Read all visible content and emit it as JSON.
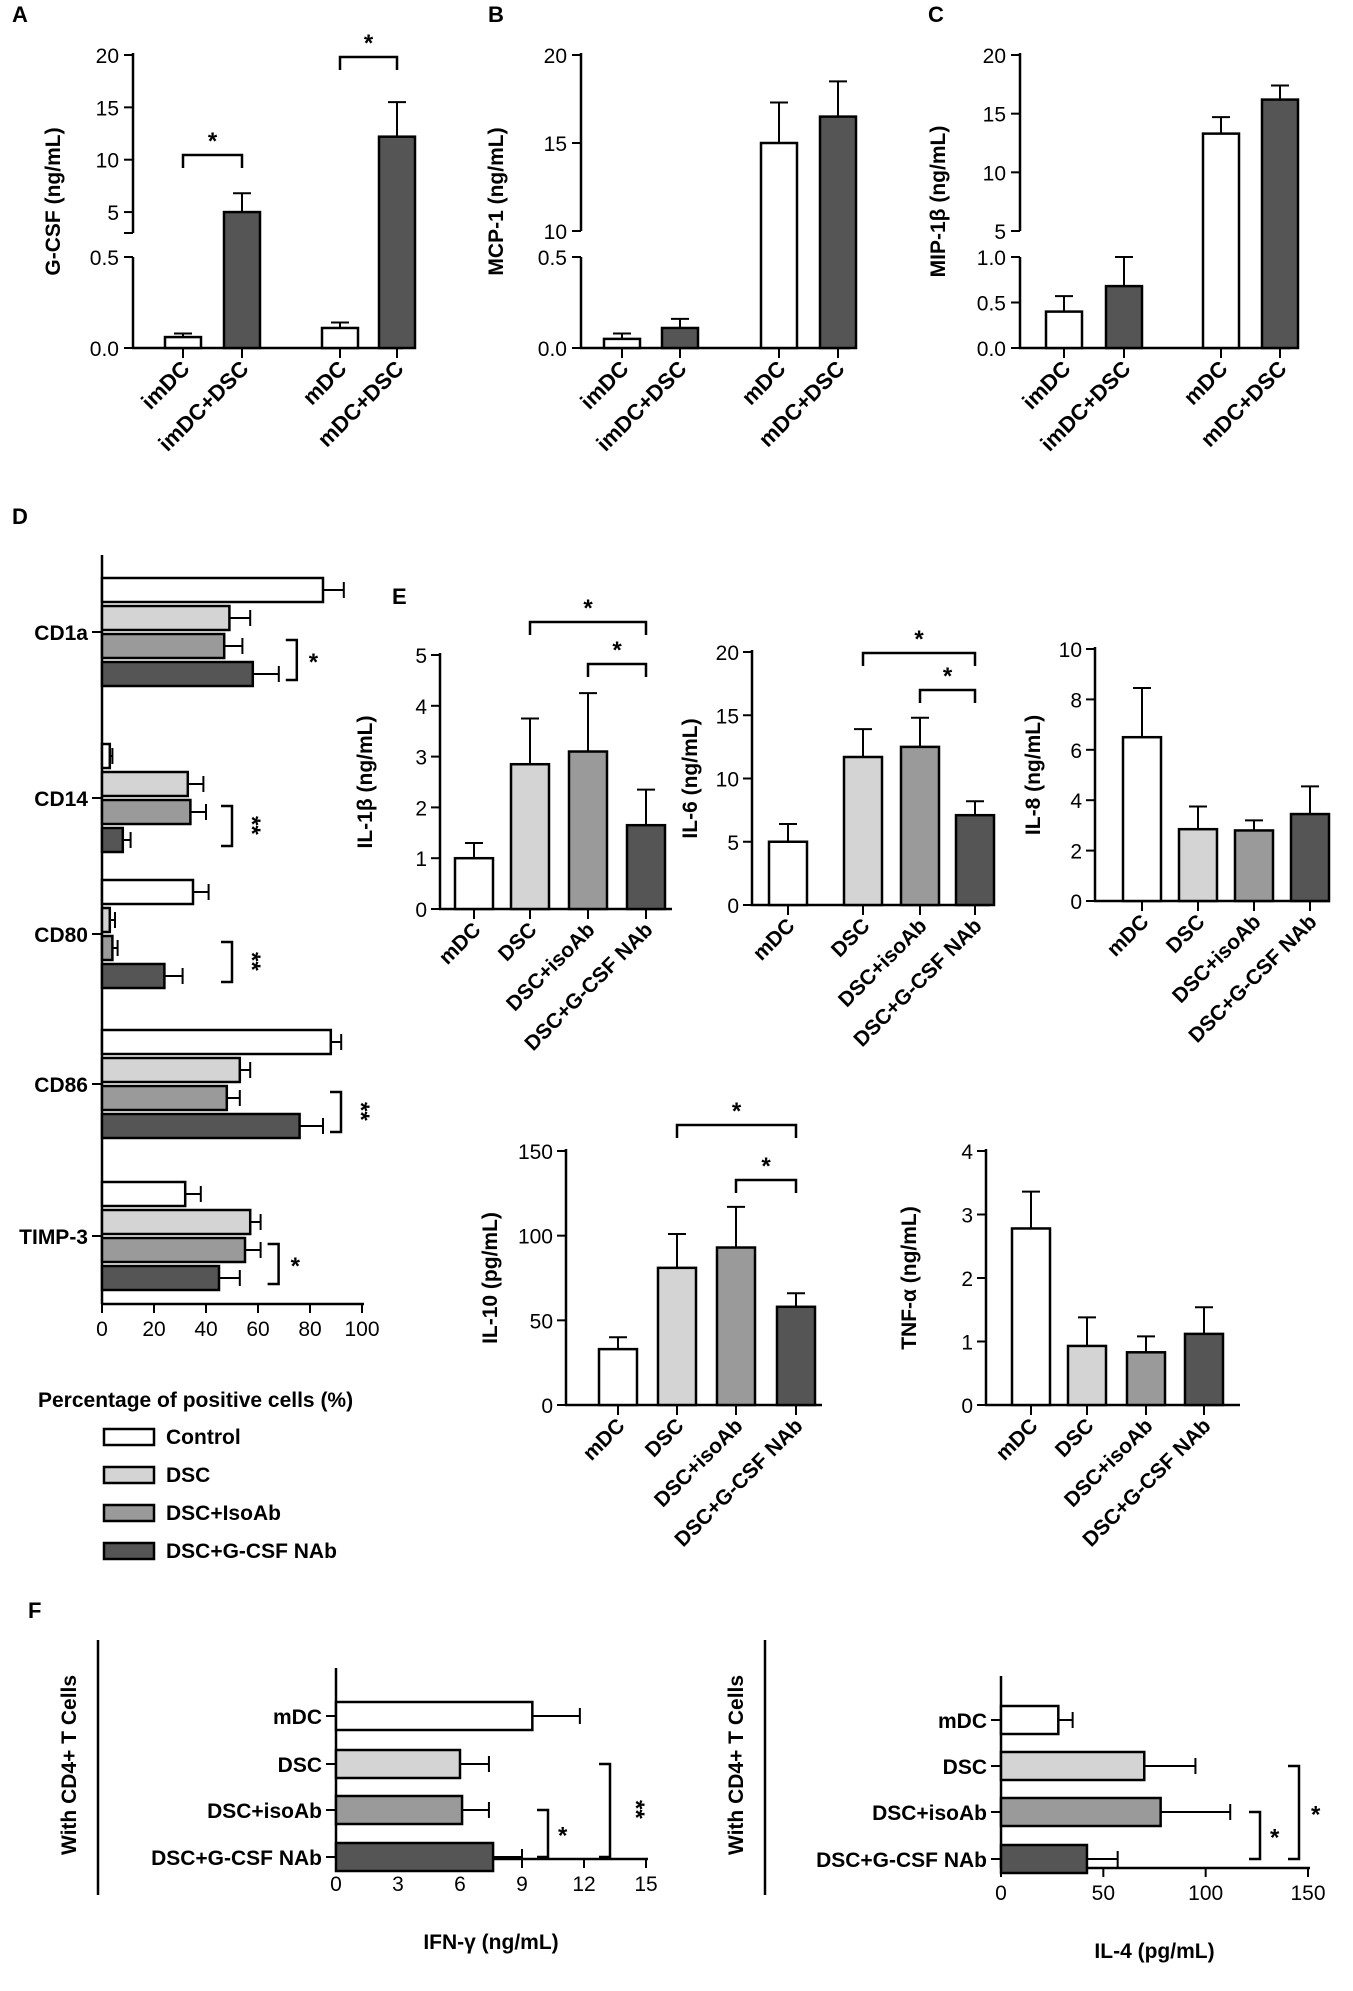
{
  "colors": {
    "white": "#ffffff",
    "light": "#d4d4d4",
    "mid": "#9a9a9a",
    "dark": "#555555",
    "black": "#000000"
  },
  "legend": {
    "title": "Percentage of positive cells (%)",
    "items": [
      {
        "label": "Control",
        "color": "#ffffff"
      },
      {
        "label": "DSC",
        "color": "#d4d4d4"
      },
      {
        "label": "DSC+IsoAb",
        "color": "#9a9a9a"
      },
      {
        "label": "DSC+G-CSF NAb",
        "color": "#555555"
      }
    ]
  },
  "chart_data": [
    {
      "panel": "A",
      "type": "bar",
      "ylabel": "G-CSF (ng/mL)",
      "categories": [
        "imDC",
        "imDC+DSC",
        "mDC",
        "mDC+DSC"
      ],
      "values": [
        0.06,
        5.0,
        0.11,
        12.2
      ],
      "errors": [
        0.02,
        1.8,
        0.03,
        3.3
      ],
      "colors": [
        "#ffffff",
        "#555555",
        "#ffffff",
        "#555555"
      ],
      "yticks_upper": [
        5,
        10,
        15,
        20
      ],
      "yticks_lower": [
        0.0,
        0.5
      ],
      "ylim_upper": [
        3,
        20
      ],
      "ylim_lower": [
        0,
        0.5
      ],
      "significance": [
        {
          "pair": [
            0,
            1
          ],
          "label": "*"
        },
        {
          "pair": [
            2,
            3
          ],
          "label": "*"
        }
      ]
    },
    {
      "panel": "B",
      "type": "bar",
      "ylabel": "MCP-1 (ng/mL)",
      "categories": [
        "imDC",
        "imDC+DSC",
        "mDC",
        "mDC+DSC"
      ],
      "values": [
        0.05,
        0.11,
        15.0,
        16.5
      ],
      "errors": [
        0.03,
        0.05,
        2.3,
        2.0
      ],
      "colors": [
        "#ffffff",
        "#555555",
        "#ffffff",
        "#555555"
      ],
      "yticks_upper": [
        10,
        15,
        20
      ],
      "yticks_lower": [
        0.0,
        0.5
      ],
      "ylim_upper": [
        10,
        20
      ],
      "ylim_lower": [
        0,
        0.5
      ],
      "significance": []
    },
    {
      "panel": "C",
      "type": "bar",
      "ylabel": "MIP-1β (ng/mL)",
      "categories": [
        "imDC",
        "imDC+DSC",
        "mDC",
        "mDC+DSC"
      ],
      "values": [
        0.4,
        0.68,
        13.3,
        16.2
      ],
      "errors": [
        0.17,
        0.32,
        1.4,
        1.2
      ],
      "colors": [
        "#ffffff",
        "#555555",
        "#ffffff",
        "#555555"
      ],
      "yticks_upper": [
        5,
        10,
        15,
        20
      ],
      "yticks_lower": [
        0.0,
        0.5,
        1.0
      ],
      "ylim_upper": [
        5,
        20
      ],
      "ylim_lower": [
        0,
        1.0
      ],
      "significance": []
    },
    {
      "panel": "D",
      "type": "bar",
      "orientation": "horizontal",
      "xlabel": "Percentage of positive cells (%)",
      "xlim": [
        0,
        100
      ],
      "xticks": [
        0,
        20,
        40,
        60,
        80,
        100
      ],
      "categories": [
        "CD1a",
        "CD14",
        "CD80",
        "CD86",
        "TIMP-3"
      ],
      "series": [
        {
          "name": "Control",
          "values": [
            85,
            3,
            35,
            88,
            32
          ],
          "errors": [
            8,
            1,
            6,
            4,
            6
          ]
        },
        {
          "name": "DSC",
          "values": [
            49,
            33,
            3,
            53,
            57
          ],
          "errors": [
            8,
            6,
            2,
            4,
            4
          ]
        },
        {
          "name": "DSC+IsoAb",
          "values": [
            47,
            34,
            4,
            48,
            55
          ],
          "errors": [
            7,
            6,
            2,
            5,
            6
          ]
        },
        {
          "name": "DSC+G-CSF NAb",
          "values": [
            58,
            8,
            24,
            76,
            45
          ],
          "errors": [
            10,
            3,
            7,
            9,
            8
          ]
        }
      ],
      "significance": [
        "*",
        "**",
        "**",
        "**",
        "*"
      ]
    },
    {
      "panel": "E",
      "type": "bar",
      "ylabel": "IL-1β (ng/mL)",
      "categories": [
        "mDC",
        "DSC",
        "DSC+isoAb",
        "DSC+G-CSF NAb"
      ],
      "values": [
        1.0,
        2.85,
        3.1,
        1.65
      ],
      "errors": [
        0.3,
        0.9,
        1.15,
        0.7
      ],
      "ylim": [
        0,
        5
      ],
      "yticks": [
        0,
        1,
        2,
        3,
        4,
        5
      ],
      "significance": [
        {
          "pair": [
            1,
            3
          ],
          "label": "*"
        },
        {
          "pair": [
            2,
            3
          ],
          "label": "*"
        }
      ]
    },
    {
      "panel": "E",
      "type": "bar",
      "ylabel": "IL-6 (ng/mL)",
      "categories": [
        "mDC",
        "DSC",
        "DSC+isoAb",
        "DSC+G-CSF NAb"
      ],
      "values": [
        5.0,
        11.7,
        12.5,
        7.1
      ],
      "errors": [
        1.4,
        2.2,
        2.3,
        1.1
      ],
      "ylim": [
        0,
        20
      ],
      "yticks": [
        0,
        5,
        10,
        15,
        20
      ],
      "significance": [
        {
          "pair": [
            1,
            3
          ],
          "label": "*"
        },
        {
          "pair": [
            2,
            3
          ],
          "label": "*"
        }
      ]
    },
    {
      "panel": "E",
      "type": "bar",
      "ylabel": "IL-8 (ng/mL)",
      "categories": [
        "mDC",
        "DSC",
        "DSC+isoAb",
        "DSC+G-CSF NAb"
      ],
      "values": [
        6.5,
        2.85,
        2.8,
        3.45
      ],
      "errors": [
        1.95,
        0.9,
        0.4,
        1.1
      ],
      "ylim": [
        0,
        10
      ],
      "yticks": [
        0,
        2,
        4,
        6,
        8,
        10
      ],
      "significance": []
    },
    {
      "panel": "E",
      "type": "bar",
      "ylabel": "IL-10 (pg/mL)",
      "categories": [
        "mDC",
        "DSC",
        "DSC+isoAb",
        "DSC+G-CSF NAb"
      ],
      "values": [
        33,
        81,
        93,
        58
      ],
      "errors": [
        7,
        20,
        24,
        8
      ],
      "ylim": [
        0,
        150
      ],
      "yticks": [
        0,
        50,
        100,
        150
      ],
      "significance": [
        {
          "pair": [
            1,
            3
          ],
          "label": "*"
        },
        {
          "pair": [
            2,
            3
          ],
          "label": "*"
        }
      ]
    },
    {
      "panel": "E",
      "type": "bar",
      "ylabel": "TNF-α (ng/mL)",
      "categories": [
        "mDC",
        "DSC",
        "DSC+isoAb",
        "DSC+G-CSF NAb"
      ],
      "values": [
        2.78,
        0.93,
        0.83,
        1.12
      ],
      "errors": [
        0.58,
        0.45,
        0.25,
        0.42
      ],
      "ylim": [
        0,
        4
      ],
      "yticks": [
        0,
        1,
        2,
        3,
        4
      ],
      "significance": []
    },
    {
      "panel": "F",
      "type": "bar",
      "orientation": "horizontal",
      "title": "With CD4+ T Cells",
      "xlabel": "IFN-γ (ng/mL)",
      "categories": [
        "mDC",
        "DSC",
        "DSC+isoAb",
        "DSC+G-CSF NAb"
      ],
      "values": [
        9.5,
        6.0,
        6.1,
        7.6
      ],
      "errors": [
        2.3,
        1.4,
        1.3,
        1.4
      ],
      "xlim": [
        0,
        15
      ],
      "xticks": [
        0,
        3,
        6,
        9,
        12,
        15
      ],
      "significance": [
        {
          "pair": [
            2,
            3
          ],
          "label": "*"
        },
        {
          "pair": [
            1,
            3
          ],
          "label": "**"
        }
      ]
    },
    {
      "panel": "F",
      "type": "bar",
      "orientation": "horizontal",
      "title": "With CD4+ T Cells",
      "xlabel": "IL-4 (pg/mL)",
      "categories": [
        "mDC",
        "DSC",
        "DSC+isoAb",
        "DSC+G-CSF NAb"
      ],
      "values": [
        28,
        70,
        78,
        42
      ],
      "errors": [
        7,
        25,
        34,
        15
      ],
      "xlim": [
        0,
        150
      ],
      "xticks": [
        0,
        50,
        100,
        150
      ],
      "significance": [
        {
          "pair": [
            2,
            3
          ],
          "label": "*"
        },
        {
          "pair": [
            1,
            3
          ],
          "label": "*"
        }
      ]
    }
  ]
}
